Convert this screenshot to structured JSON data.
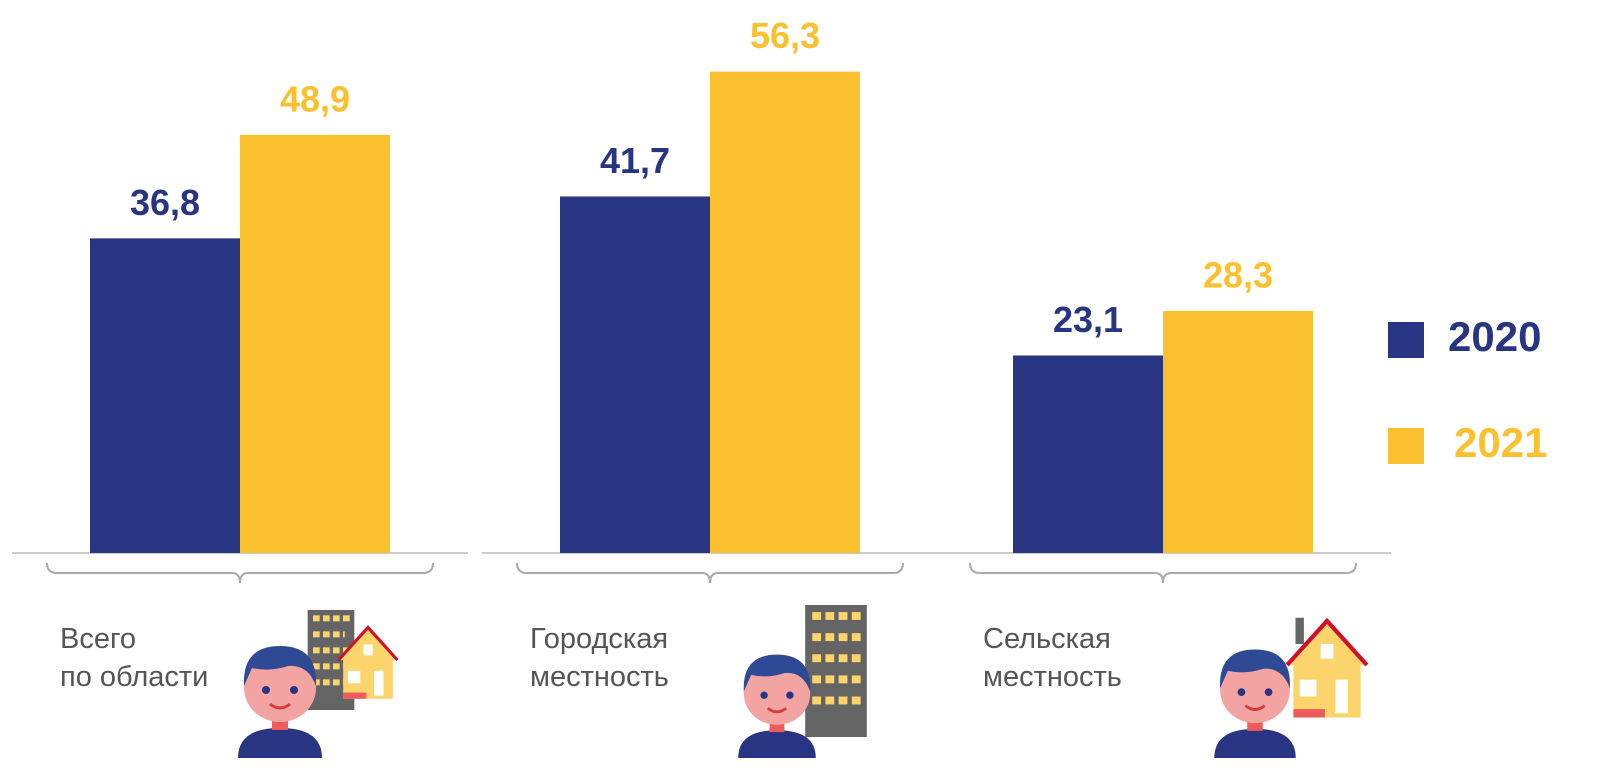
{
  "chart_data": {
    "type": "bar",
    "categories": [
      "Всего\nпо области",
      "Городская\nместность",
      "Сельская\nместность"
    ],
    "series": [
      {
        "name": "2020",
        "color": "#283583",
        "values": [
          36.8,
          41.7,
          23.1
        ],
        "value_labels": [
          "36,8",
          "41,7",
          "23,1"
        ]
      },
      {
        "name": "2021",
        "color": "#fbc02d",
        "values": [
          48.9,
          56.3,
          28.3
        ],
        "value_labels": [
          "48,9",
          "56,3",
          "28,3"
        ]
      }
    ],
    "ylim": [
      0,
      60
    ],
    "legend": "right"
  }
}
